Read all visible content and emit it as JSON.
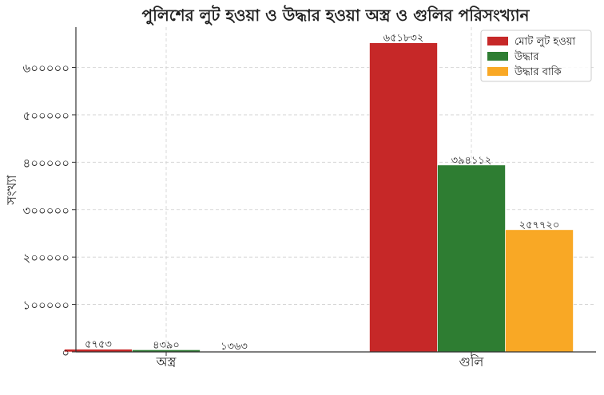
{
  "chart_data": {
    "type": "bar",
    "title": "পুলিশের লুট হওয়া ও উদ্ধার হওয়া অস্ত্র ও গুলির পরিসংখ্যান",
    "xlabel": "",
    "ylabel": "সংখ্যা",
    "categories": [
      "অস্ত্র",
      "গুলি"
    ],
    "series": [
      {
        "name": "মোট লুট হওয়া",
        "color": "#c62828",
        "values": [
          5753,
          651832
        ],
        "value_labels": [
          "৫৭৫৩",
          "৬৫১৮৩২"
        ]
      },
      {
        "name": "উদ্ধার",
        "color": "#2e7d32",
        "values": [
          4390,
          394112
        ],
        "value_labels": [
          "৪৩৯০",
          "৩৯৪১১২"
        ]
      },
      {
        "name": "উদ্ধার বাকি",
        "color": "#f9a825",
        "values": [
          1363,
          257720
        ],
        "value_labels": [
          "১৩৬৩",
          "২৫৭৭২০"
        ]
      }
    ],
    "yticks": [
      {
        "value": 0,
        "label": "০"
      },
      {
        "value": 100000,
        "label": "১০০০০০"
      },
      {
        "value": 200000,
        "label": "২০০০০০"
      },
      {
        "value": 300000,
        "label": "৩০০০০০"
      },
      {
        "value": 400000,
        "label": "৪০০০০০"
      },
      {
        "value": 500000,
        "label": "৫০০০০০"
      },
      {
        "value": 600000,
        "label": "৬০০০০০"
      }
    ],
    "ylim": [
      0,
      685000
    ],
    "grid": true,
    "legend_position": "top-right"
  }
}
